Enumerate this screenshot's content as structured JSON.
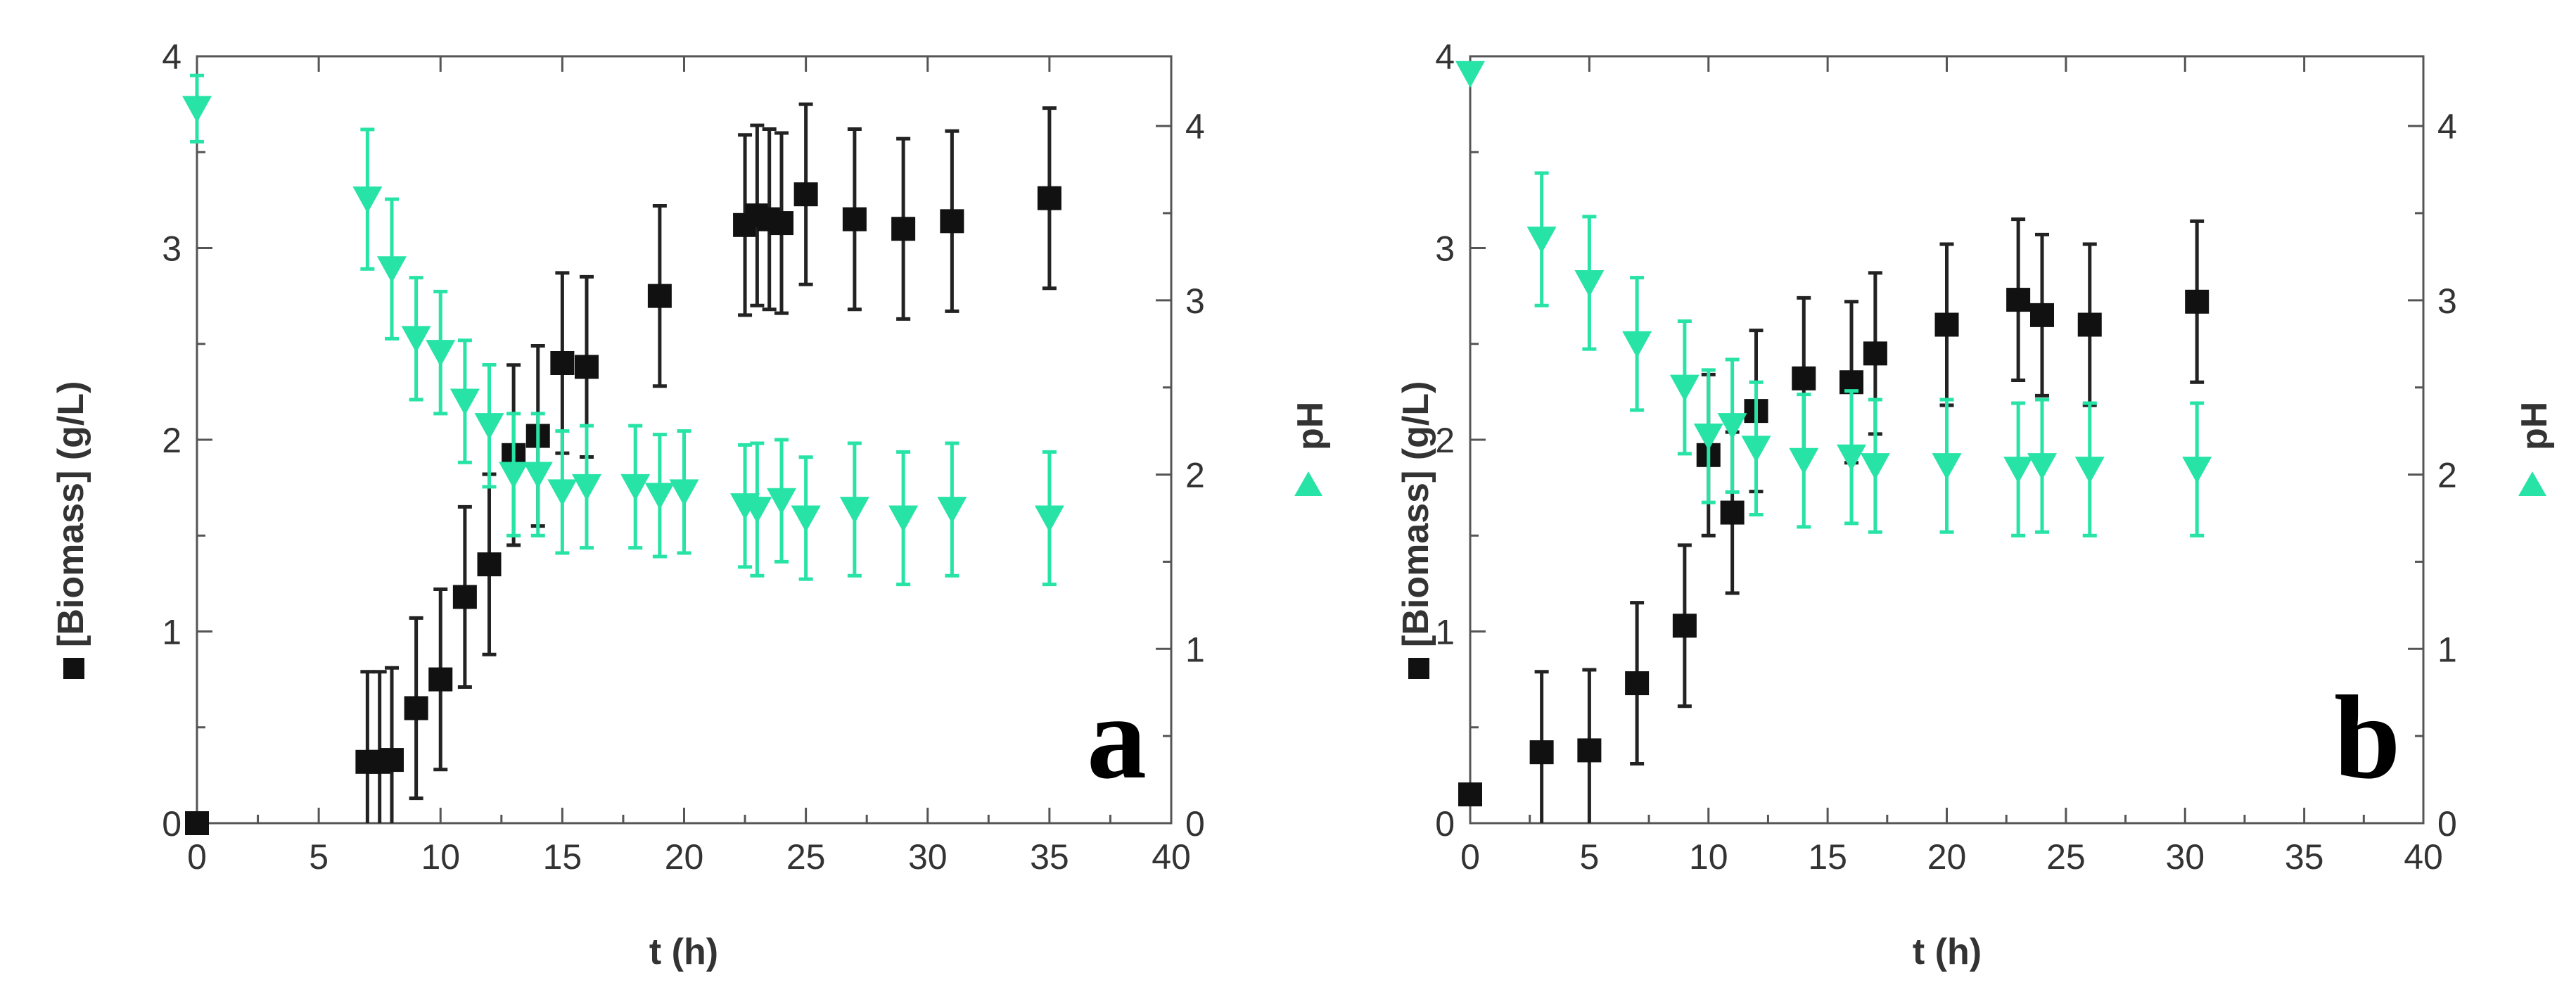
{
  "colors": {
    "biomass": "#111111",
    "ph": "#27e3a6",
    "axis": "#555555"
  },
  "chart_data": [
    {
      "panel": "a",
      "type": "scatter",
      "xlabel": "t (h)",
      "ylabel_left": "[Biomass] (g/L)",
      "ylabel_right": "pH",
      "xlim": [
        0,
        40
      ],
      "ylim_left": [
        0,
        4
      ],
      "ylim_right": [
        0,
        4.4
      ],
      "xticks": [
        "0",
        "5",
        "10",
        "15",
        "20",
        "25",
        "30",
        "35",
        "40"
      ],
      "yticks_left": [
        "0",
        "1",
        "2",
        "3",
        "4"
      ],
      "yticks_right": [
        "0",
        "1",
        "2",
        "3",
        "4"
      ],
      "series": [
        {
          "name": "[Biomass]",
          "axis": "left",
          "marker": "square",
          "x": [
            0,
            7,
            7.5,
            8,
            9,
            10,
            11,
            12,
            13,
            14,
            15,
            16,
            19,
            22.5,
            23,
            23.5,
            24,
            25,
            27,
            29,
            31,
            35
          ],
          "y": [
            0,
            0.32,
            0.32,
            0.33,
            0.6,
            0.75,
            1.18,
            1.35,
            1.92,
            2.02,
            2.4,
            2.38,
            2.75,
            3.12,
            3.17,
            3.15,
            3.13,
            3.28,
            3.15,
            3.1,
            3.14,
            3.26
          ],
          "err": [
            0,
            0.47,
            0.47,
            0.48,
            0.47,
            0.47,
            0.47,
            0.47,
            0.47,
            0.47,
            0.47,
            0.47,
            0.47,
            0.47,
            0.47,
            0.47,
            0.47,
            0.47,
            0.47,
            0.47,
            0.47,
            0.47
          ]
        },
        {
          "name": "pH",
          "axis": "right",
          "marker": "triangle-down",
          "x": [
            0,
            7,
            8,
            9,
            10,
            11,
            12,
            13,
            14,
            15,
            16,
            18,
            19,
            20,
            22.5,
            23,
            24,
            25,
            27,
            29,
            31,
            35
          ],
          "y": [
            4.1,
            3.58,
            3.18,
            2.78,
            2.7,
            2.42,
            2.28,
            2.0,
            2.0,
            1.9,
            1.93,
            1.93,
            1.88,
            1.9,
            1.82,
            1.8,
            1.85,
            1.75,
            1.8,
            1.75,
            1.8,
            1.75
          ],
          "err": [
            0.19,
            0.4,
            0.4,
            0.35,
            0.35,
            0.35,
            0.35,
            0.35,
            0.35,
            0.35,
            0.35,
            0.35,
            0.35,
            0.35,
            0.35,
            0.38,
            0.35,
            0.35,
            0.38,
            0.38,
            0.38,
            0.38
          ]
        }
      ]
    },
    {
      "panel": "b",
      "type": "scatter",
      "xlabel": "t (h)",
      "ylabel_left": "[Biomass] (g/L)",
      "ylabel_right": "pH",
      "xlim": [
        0,
        40
      ],
      "ylim_left": [
        0,
        4
      ],
      "ylim_right": [
        0,
        4.4
      ],
      "xticks": [
        "0",
        "5",
        "10",
        "15",
        "20",
        "25",
        "30",
        "35",
        "40"
      ],
      "yticks_left": [
        "0",
        "1",
        "2",
        "3",
        "4"
      ],
      "yticks_right": [
        "0",
        "1",
        "2",
        "3",
        "4"
      ],
      "series": [
        {
          "name": "[Biomass]",
          "axis": "left",
          "marker": "square",
          "x": [
            0,
            3,
            5,
            7,
            9,
            10,
            11,
            12,
            14,
            16,
            17,
            20,
            23,
            24,
            26,
            30.5
          ],
          "y": [
            0.15,
            0.37,
            0.38,
            0.73,
            1.03,
            1.92,
            1.62,
            2.15,
            2.32,
            2.3,
            2.45,
            2.6,
            2.73,
            2.65,
            2.6,
            2.72
          ],
          "err": [
            0,
            0.42,
            0.42,
            0.42,
            0.42,
            0.42,
            0.42,
            0.42,
            0.42,
            0.42,
            0.42,
            0.42,
            0.42,
            0.42,
            0.42,
            0.42
          ]
        },
        {
          "name": "pH",
          "axis": "right",
          "marker": "triangle-down",
          "x": [
            0,
            3,
            5,
            7,
            9,
            10,
            11,
            12,
            14,
            16,
            17,
            20,
            23,
            24,
            26,
            30.5
          ],
          "y": [
            4.3,
            3.35,
            3.1,
            2.75,
            2.5,
            2.22,
            2.28,
            2.15,
            2.08,
            2.1,
            2.05,
            2.05,
            2.03,
            2.05,
            2.03,
            2.03
          ],
          "err": [
            0,
            0.38,
            0.38,
            0.38,
            0.38,
            0.38,
            0.38,
            0.38,
            0.38,
            0.38,
            0.38,
            0.38,
            0.38,
            0.38,
            0.38,
            0.38
          ]
        }
      ]
    }
  ]
}
